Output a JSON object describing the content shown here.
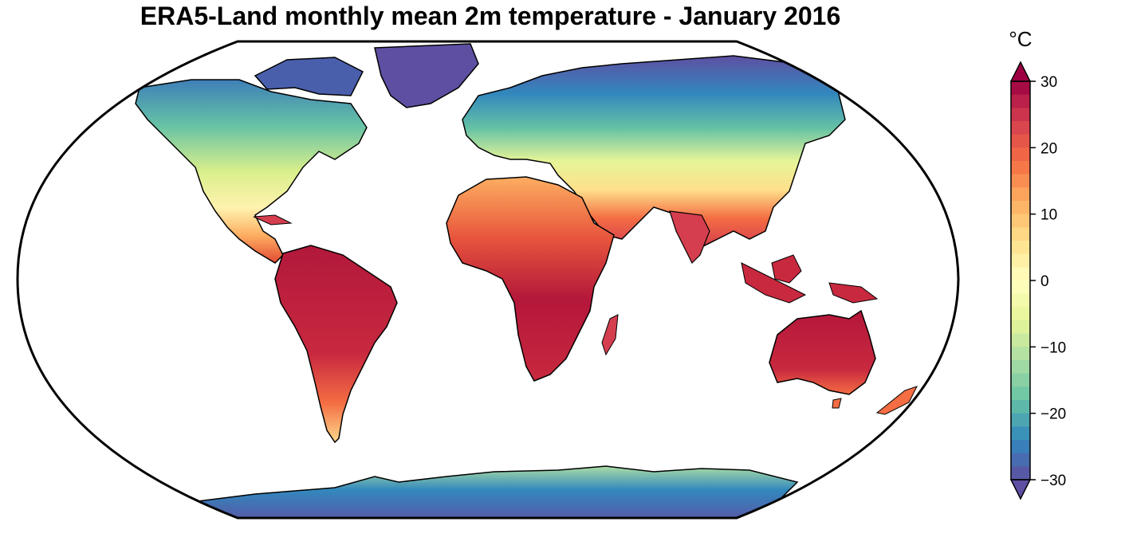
{
  "title": "ERA5-Land monthly mean 2m temperature - January 2016",
  "colorbar": {
    "unit": "°C",
    "min": -30,
    "max": 30,
    "ticks": [
      30,
      20,
      10,
      0,
      -10,
      -20,
      -30
    ],
    "tick_labels": [
      "30",
      "20",
      "10",
      "0",
      "−10",
      "−20",
      "−30"
    ],
    "extend": "both",
    "colormap": "Spectral_r",
    "colors": [
      "#5e4fa2",
      "#3288bd",
      "#66c2a5",
      "#abdda4",
      "#e6f598",
      "#ffffbf",
      "#fee08b",
      "#fdae61",
      "#f46d43",
      "#d53e4f",
      "#9e0142"
    ]
  }
}
